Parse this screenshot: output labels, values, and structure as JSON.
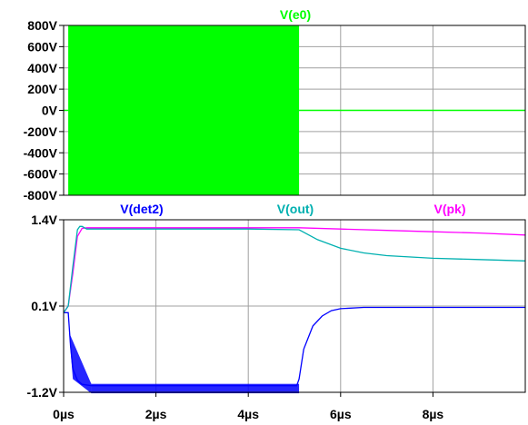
{
  "chart_data": [
    {
      "type": "line",
      "panel": "top",
      "title": "",
      "xlabel": "",
      "ylabel": "",
      "grid": true,
      "xlim": [
        0,
        10
      ],
      "ylim": [
        -800,
        800
      ],
      "x_unit": "µs",
      "y_unit": "V",
      "yticks": [
        800,
        600,
        400,
        200,
        0,
        -200,
        -400,
        -600,
        -800
      ],
      "ytick_labels": [
        "800V",
        "600V",
        "400V",
        "200V",
        "0V",
        "-200V",
        "-400V",
        "-600V",
        "-800V"
      ],
      "series": [
        {
          "name": "V(e0)",
          "color": "#00ff00",
          "description_points": {
            "burst_start_us": 0.1,
            "burst_end_us": 5.1,
            "amplitude_v": 800,
            "after_burst_v": 0
          }
        }
      ]
    },
    {
      "type": "line",
      "panel": "bottom",
      "title": "",
      "xlabel": "",
      "ylabel": "",
      "grid": true,
      "xlim": [
        0,
        10
      ],
      "ylim": [
        -1.2,
        1.4
      ],
      "x_unit": "µs",
      "y_unit": "V",
      "xticks": [
        0,
        2,
        4,
        6,
        8
      ],
      "xtick_labels": [
        "0µs",
        "2µs",
        "4µs",
        "6µs",
        "8µs"
      ],
      "yticks": [
        1.4,
        0.1,
        -1.2
      ],
      "ytick_labels": [
        "1.4V",
        "0.1V",
        "-1.2V"
      ],
      "series": [
        {
          "name": "V(det2)",
          "color": "#0000ff",
          "x": [
            0.0,
            0.1,
            0.15,
            0.2,
            0.3,
            0.4,
            0.6,
            1.0,
            2.0,
            3.0,
            4.0,
            5.05,
            5.1,
            5.2,
            5.4,
            5.6,
            5.8,
            6.0,
            6.5,
            7.0,
            8.0,
            10.0
          ],
          "y": [
            0.0,
            0.0,
            -0.5,
            -0.85,
            -1.02,
            -1.08,
            -1.1,
            -1.1,
            -1.1,
            -1.1,
            -1.1,
            -1.1,
            -1.0,
            -0.55,
            -0.2,
            -0.05,
            0.03,
            0.06,
            0.08,
            0.08,
            0.08,
            0.08
          ],
          "ripple_us": [
            0.1,
            5.1
          ]
        },
        {
          "name": "V(out)",
          "color": "#00b0b0",
          "x": [
            0.0,
            0.1,
            0.2,
            0.3,
            0.35,
            0.4,
            0.5,
            1.0,
            2.0,
            3.0,
            4.0,
            5.1,
            5.5,
            6.0,
            6.5,
            7.0,
            8.0,
            9.0,
            10.0
          ],
          "y": [
            0.0,
            0.1,
            0.7,
            1.25,
            1.3,
            1.3,
            1.26,
            1.26,
            1.26,
            1.26,
            1.26,
            1.25,
            1.1,
            0.97,
            0.9,
            0.86,
            0.82,
            0.8,
            0.78
          ]
        },
        {
          "name": "V(pk)",
          "color": "#ff00ff",
          "x": [
            0.0,
            0.1,
            0.2,
            0.3,
            0.4,
            0.5,
            1.0,
            2.0,
            3.0,
            4.0,
            5.1,
            6.0,
            7.0,
            8.0,
            9.0,
            10.0
          ],
          "y": [
            0.0,
            0.1,
            0.6,
            1.15,
            1.27,
            1.28,
            1.28,
            1.28,
            1.28,
            1.28,
            1.28,
            1.26,
            1.24,
            1.22,
            1.2,
            1.17
          ]
        }
      ]
    }
  ],
  "colors": {
    "grid": "#a0a0a0",
    "frame": "#000000",
    "tick_text": "#000000"
  }
}
